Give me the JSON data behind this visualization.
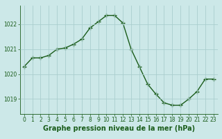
{
  "x": [
    0,
    1,
    2,
    3,
    4,
    5,
    6,
    7,
    8,
    9,
    10,
    11,
    12,
    13,
    14,
    15,
    16,
    17,
    18,
    19,
    20,
    21,
    22,
    23
  ],
  "y": [
    1020.3,
    1020.65,
    1020.65,
    1020.75,
    1021.0,
    1021.05,
    1021.2,
    1021.4,
    1021.85,
    1022.1,
    1022.35,
    1022.35,
    1022.05,
    1021.0,
    1020.3,
    1019.6,
    1019.2,
    1018.85,
    1018.75,
    1018.75,
    1019.0,
    1019.3,
    1019.8,
    1019.8
  ],
  "line_color": "#1a5c1a",
  "marker": "+",
  "marker_size": 4,
  "marker_linewidth": 1.0,
  "bg_color": "#cce8e8",
  "grid_color": "#aacece",
  "xlabel": "Graphe pression niveau de la mer (hPa)",
  "xlabel_fontsize": 7,
  "xlabel_color": "#1a5c1a",
  "yticks": [
    1019,
    1020,
    1021,
    1022
  ],
  "xticks": [
    0,
    1,
    2,
    3,
    4,
    5,
    6,
    7,
    8,
    9,
    10,
    11,
    12,
    13,
    14,
    15,
    16,
    17,
    18,
    19,
    20,
    21,
    22,
    23
  ],
  "ylim": [
    1018.4,
    1022.75
  ],
  "xlim": [
    -0.5,
    23.5
  ],
  "tick_color": "#1a5c1a",
  "tick_fontsize": 5.5,
  "linewidth": 1.0
}
